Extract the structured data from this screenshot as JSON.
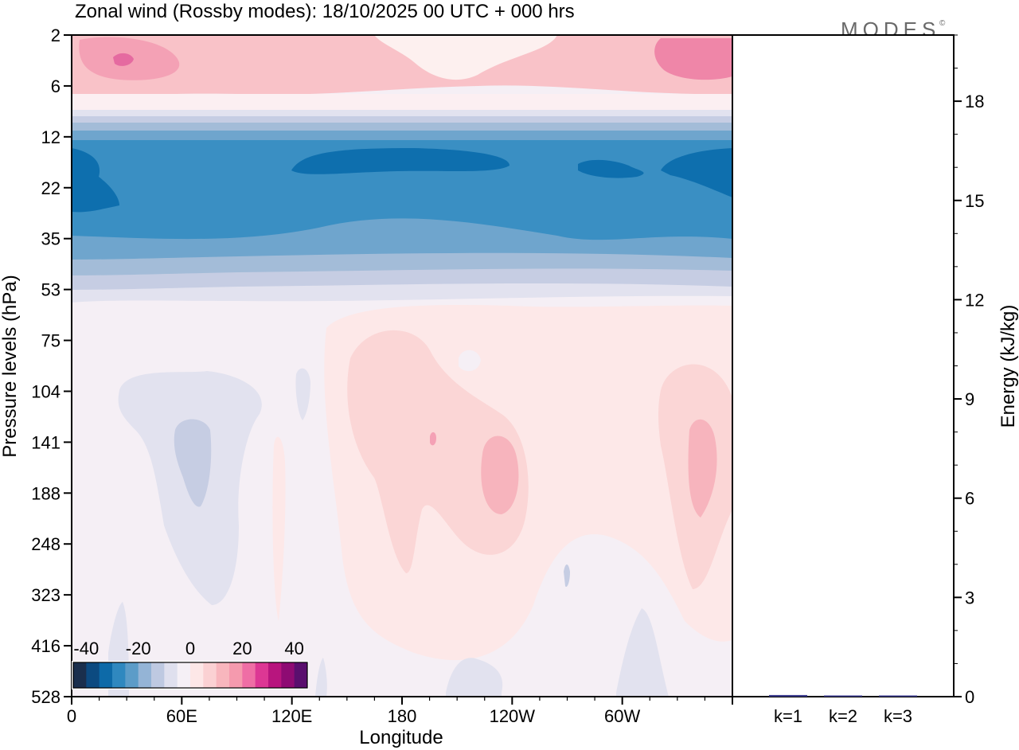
{
  "title": "Zonal wind (Rossby modes):  18/10/2025  00 UTC  + 000 hrs",
  "logo_text": "MODES",
  "logo_mark": "©",
  "chart_data": [
    {
      "type": "heatmap",
      "name": "zonal-wind-cross-section",
      "xlabel": "Longitude",
      "ylabel": "Pressure levels (hPa)",
      "x_ticks": [
        "0",
        "60E",
        "120E",
        "180",
        "120W",
        "60W"
      ],
      "x_tick_values": [
        0,
        60,
        120,
        180,
        240,
        300
      ],
      "xlim": [
        0,
        360
      ],
      "y_ticks": [
        "2",
        "6",
        "12",
        "22",
        "35",
        "53",
        "75",
        "104",
        "141",
        "188",
        "248",
        "323",
        "416",
        "528"
      ],
      "y_order": "top-to-bottom",
      "colorbar": {
        "tick_labels": [
          "-40",
          "-20",
          "0",
          "20",
          "40"
        ],
        "tick_values": [
          -40,
          -20,
          0,
          20,
          40
        ],
        "range": [
          -45,
          45
        ],
        "bins": 18,
        "colors": [
          "#1a2f4d",
          "#0c4a80",
          "#0d6aa8",
          "#2f88bf",
          "#5c9cc8",
          "#94b4d6",
          "#bec9e1",
          "#dfe0ee",
          "#f5f0f6",
          "#fde7e7",
          "#fbd1d3",
          "#f8b6bd",
          "#f59aae",
          "#ef6ea5",
          "#dd3794",
          "#b8157e",
          "#8e0b73",
          "#5a0f6e"
        ]
      },
      "layers": [
        {
          "level": "2-10 hPa",
          "wind": "weak easterly/westerly mix, positive 5-25"
        },
        {
          "level": "10-12 hPa",
          "wind": "near zero"
        },
        {
          "level": "12-45 hPa",
          "wind": "strong negative, -15 to -40"
        },
        {
          "level": "45-60 hPa",
          "wind": "weak negative, -5 to -10"
        },
        {
          "level": "60-528 hPa",
          "wind": "near zero, weak positive near 180 and 60W-0"
        }
      ]
    },
    {
      "type": "bar",
      "name": "energy-by-wavenumber",
      "categories": [
        "k=1",
        "k=2",
        "k=3"
      ],
      "values": [
        0.05,
        0.02,
        0.02
      ],
      "ylabel": "Energy (kJ/kg)",
      "y_ticks": [
        "0",
        "3",
        "6",
        "9",
        "12",
        "15",
        "18"
      ],
      "ylim": [
        0,
        20
      ],
      "bar_color": "#3b3b8f"
    }
  ]
}
